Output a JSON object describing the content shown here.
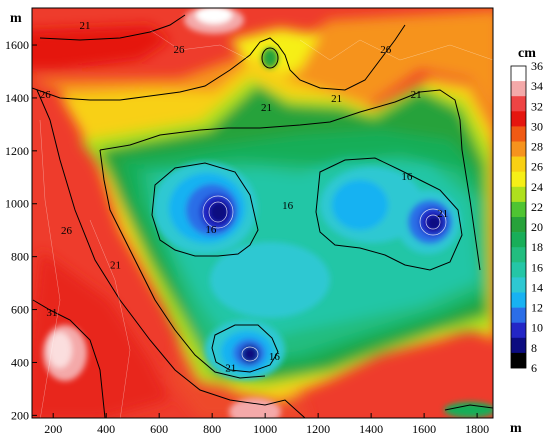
{
  "chart_data": {
    "type": "heatmap",
    "title": "",
    "xlabel": "m",
    "ylabel": "m",
    "xlim": [
      120,
      1860
    ],
    "ylim": [
      190,
      1740
    ],
    "x_ticks": [
      "200",
      "400",
      "600",
      "800",
      "1000",
      "1200",
      "1400",
      "1600",
      "1800"
    ],
    "y_ticks": [
      "200",
      "400",
      "600",
      "800",
      "1000",
      "1200",
      "1400",
      "1600"
    ],
    "colorbar": {
      "unit": "cm",
      "range": [
        6,
        36
      ],
      "levels": [
        "36",
        "34",
        "32",
        "30",
        "28",
        "26",
        "24",
        "22",
        "20",
        "18",
        "16",
        "14",
        "12",
        "10",
        "8",
        "6"
      ],
      "colors": [
        "#ffffff",
        "#f4a9a9",
        "#ee4444",
        "#e5160f",
        "#f05a14",
        "#f6931d",
        "#f8d013",
        "#f6ef17",
        "#aee01e",
        "#4fc432",
        "#27a23a",
        "#18ae59",
        "#22bd7f",
        "#24c6a6",
        "#2ec8d2",
        "#18b2f2",
        "#2b6ee7",
        "#2326c6",
        "#0c0c80",
        "#000000"
      ]
    },
    "contour_labels": [
      {
        "text": "21",
        "x": 1005,
        "y": 1350
      },
      {
        "text": "21",
        "x": 1270,
        "y": 1385
      },
      {
        "text": "21",
        "x": 1570,
        "y": 1400
      },
      {
        "text": "21",
        "x": 320,
        "y": 1660
      },
      {
        "text": "21",
        "x": 870,
        "y": 365
      },
      {
        "text": "21",
        "x": 1670,
        "y": 950
      },
      {
        "text": "21",
        "x": 435,
        "y": 755
      },
      {
        "text": "26",
        "x": 170,
        "y": 1400
      },
      {
        "text": "26",
        "x": 675,
        "y": 1570
      },
      {
        "text": "26",
        "x": 1455,
        "y": 1570
      },
      {
        "text": "26",
        "x": 250,
        "y": 885
      },
      {
        "text": "31",
        "x": 195,
        "y": 575
      },
      {
        "text": "16",
        "x": 795,
        "y": 890
      },
      {
        "text": "16",
        "x": 1085,
        "y": 980
      },
      {
        "text": "16",
        "x": 1535,
        "y": 1090
      },
      {
        "text": "16",
        "x": 1035,
        "y": 410
      }
    ],
    "grid": false,
    "legend": "right"
  }
}
